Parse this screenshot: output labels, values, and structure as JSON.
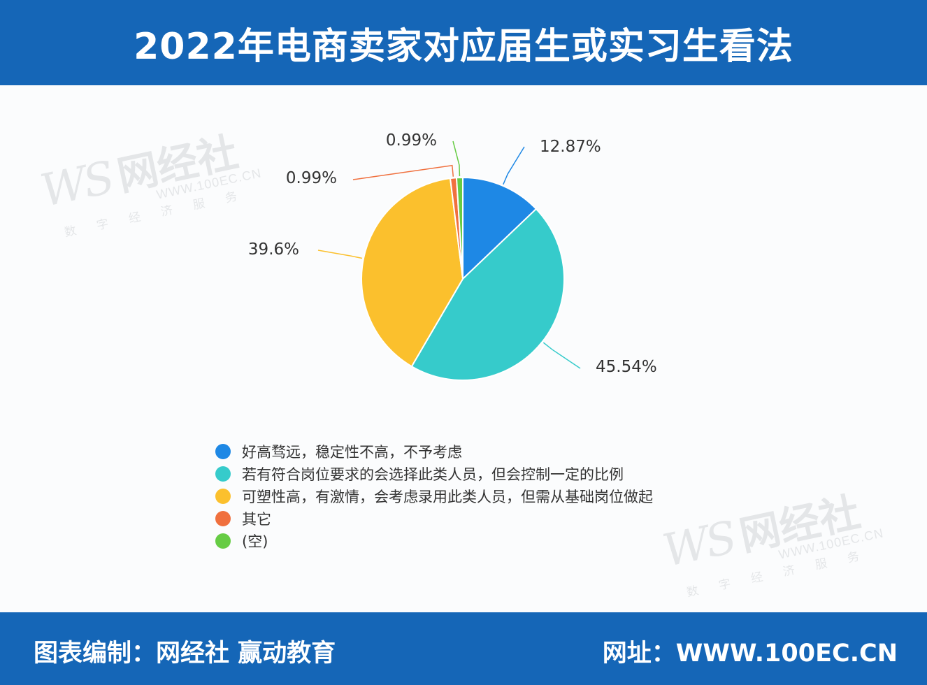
{
  "header": {
    "title": "2022年电商卖家对应届生或实习生看法"
  },
  "footer": {
    "left": "图表编制：网经社 赢动教育",
    "right": "网址：WWW.100EC.CN"
  },
  "watermark": {
    "logo": "WS",
    "brand": "网经社",
    "url": "WWW.100EC.CN",
    "tagline": "数字经济服务"
  },
  "colors": {
    "header_bg": "#1566b7",
    "blue": "#1e88e5",
    "teal": "#36cbcb",
    "yellow": "#fbc02d",
    "orange": "#f0703e",
    "green": "#66cc44"
  },
  "chart_data": {
    "type": "pie",
    "title": "2022年电商卖家对应届生或实习生看法",
    "slices": [
      {
        "label": "好高骛远，稳定性不高，不予考虑",
        "value": 12.87,
        "display": "12.87%",
        "color": "#1e88e5"
      },
      {
        "label": "若有符合岗位要求的会选择此类人员，但会控制一定的比例",
        "value": 45.54,
        "display": "45.54%",
        "color": "#36cbcb"
      },
      {
        "label": "可塑性高，有激情，会考虑录用此类人员，但需从基础岗位做起",
        "value": 39.6,
        "display": "39.6%",
        "color": "#fbc02d"
      },
      {
        "label": "其它",
        "value": 0.99,
        "display": "0.99%",
        "color": "#f0703e"
      },
      {
        "label": "(空)",
        "value": 0.99,
        "display": "0.99%",
        "color": "#66cc44"
      }
    ],
    "legend_position": "bottom"
  }
}
